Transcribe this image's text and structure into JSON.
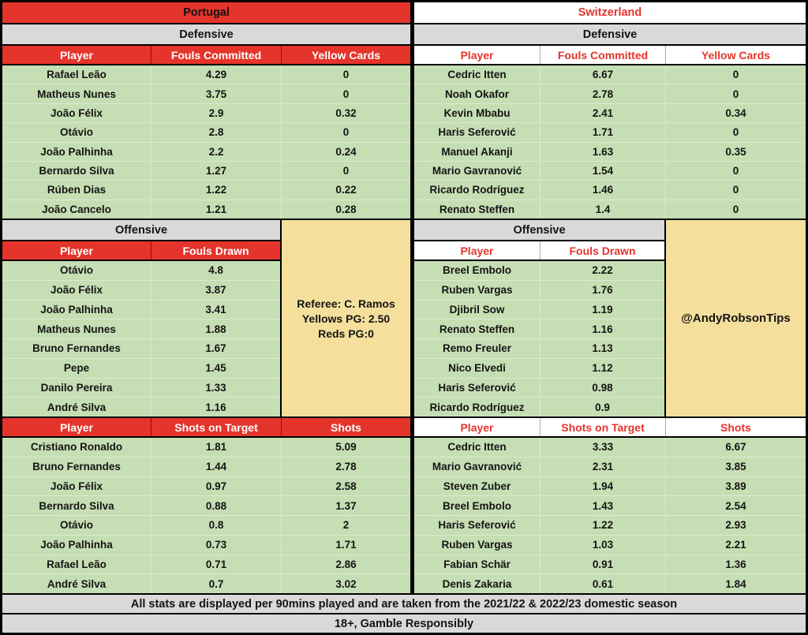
{
  "colors": {
    "accent_red": "#E5342B",
    "cell_green": "#C6DEB4",
    "label_gray": "#D9D9D9",
    "note_yellow": "#F5DF9C",
    "border_black": "#000000",
    "header_text_white": "#FFFFFF",
    "body_text": "#141414"
  },
  "portugal": {
    "title": "Portugal",
    "defensive_label": "Defensive",
    "offensive_label": "Offensive"
  },
  "switzerland": {
    "title": "Switzerland",
    "defensive_label": "Defensive",
    "offensive_label": "Offensive"
  },
  "referee_box": {
    "line1": "Referee: C. Ramos",
    "line2": "Yellows PG: 2.50",
    "line3": "Reds PG:0"
  },
  "handle_box": {
    "text": "@AndyRobsonTips"
  },
  "footer": {
    "line1": "All stats are displayed per 90mins played and are taken from the 2021/22 & 2022/23 domestic season",
    "line2": "18+, Gamble Responsibly"
  },
  "chart_data": [
    {
      "type": "table",
      "title": "Portugal Defensive",
      "columns": [
        "Player",
        "Fouls Committed",
        "Yellow Cards"
      ],
      "rows": [
        [
          "Rafael Leão",
          "4.29",
          "0"
        ],
        [
          "Matheus Nunes",
          "3.75",
          "0"
        ],
        [
          "João Félix",
          "2.9",
          "0.32"
        ],
        [
          "Otávio",
          "2.8",
          "0"
        ],
        [
          "João Palhinha",
          "2.2",
          "0.24"
        ],
        [
          "Bernardo Silva",
          "1.27",
          "0"
        ],
        [
          "Rúben Dias",
          "1.22",
          "0.22"
        ],
        [
          "João Cancelo",
          "1.21",
          "0.28"
        ]
      ]
    },
    {
      "type": "table",
      "title": "Portugal Offensive",
      "columns": [
        "Player",
        "Fouls Drawn"
      ],
      "rows": [
        [
          "Otávio",
          "4.8"
        ],
        [
          "João Félix",
          "3.87"
        ],
        [
          "João Palhinha",
          "3.41"
        ],
        [
          "Matheus Nunes",
          "1.88"
        ],
        [
          "Bruno Fernandes",
          "1.67"
        ],
        [
          "Pepe",
          "1.45"
        ],
        [
          "Danilo Pereira",
          "1.33"
        ],
        [
          "André Silva",
          "1.16"
        ]
      ]
    },
    {
      "type": "table",
      "title": "Portugal Shots",
      "columns": [
        "Player",
        "Shots on Target",
        "Shots"
      ],
      "rows": [
        [
          "Cristiano Ronaldo",
          "1.81",
          "5.09"
        ],
        [
          "Bruno Fernandes",
          "1.44",
          "2.78"
        ],
        [
          "João Félix",
          "0.97",
          "2.58"
        ],
        [
          "Bernardo Silva",
          "0.88",
          "1.37"
        ],
        [
          "Otávio",
          "0.8",
          "2"
        ],
        [
          "João Palhinha",
          "0.73",
          "1.71"
        ],
        [
          "Rafael Leão",
          "0.71",
          "2.86"
        ],
        [
          "André Silva",
          "0.7",
          "3.02"
        ]
      ]
    },
    {
      "type": "table",
      "title": "Switzerland Defensive",
      "columns": [
        "Player",
        "Fouls Committed",
        "Yellow Cards"
      ],
      "rows": [
        [
          "Cedric Itten",
          "6.67",
          "0"
        ],
        [
          "Noah Okafor",
          "2.78",
          "0"
        ],
        [
          "Kevin Mbabu",
          "2.41",
          "0.34"
        ],
        [
          "Haris Seferović",
          "1.71",
          "0"
        ],
        [
          "Manuel Akanji",
          "1.63",
          "0.35"
        ],
        [
          "Mario Gavranović",
          "1.54",
          "0"
        ],
        [
          "Ricardo Rodríguez",
          "1.46",
          "0"
        ],
        [
          "Renato Steffen",
          "1.4",
          "0"
        ]
      ]
    },
    {
      "type": "table",
      "title": "Switzerland Offensive",
      "columns": [
        "Player",
        "Fouls Drawn"
      ],
      "rows": [
        [
          "Breel Embolo",
          "2.22"
        ],
        [
          "Ruben Vargas",
          "1.76"
        ],
        [
          "Djibril Sow",
          "1.19"
        ],
        [
          "Renato Steffen",
          "1.16"
        ],
        [
          "Remo Freuler",
          "1.13"
        ],
        [
          "Nico Elvedi",
          "1.12"
        ],
        [
          "Haris Seferović",
          "0.98"
        ],
        [
          "Ricardo Rodríguez",
          "0.9"
        ]
      ]
    },
    {
      "type": "table",
      "title": "Switzerland Shots",
      "columns": [
        "Player",
        "Shots on Target",
        "Shots"
      ],
      "rows": [
        [
          "Cedric Itten",
          "3.33",
          "6.67"
        ],
        [
          "Mario Gavranović",
          "2.31",
          "3.85"
        ],
        [
          "Steven Zuber",
          "1.94",
          "3.89"
        ],
        [
          "Breel Embolo",
          "1.43",
          "2.54"
        ],
        [
          "Haris Seferović",
          "1.22",
          "2.93"
        ],
        [
          "Ruben Vargas",
          "1.03",
          "2.21"
        ],
        [
          "Fabian Schär",
          "0.91",
          "1.36"
        ],
        [
          "Denis Zakaria",
          "0.61",
          "1.84"
        ]
      ]
    }
  ]
}
